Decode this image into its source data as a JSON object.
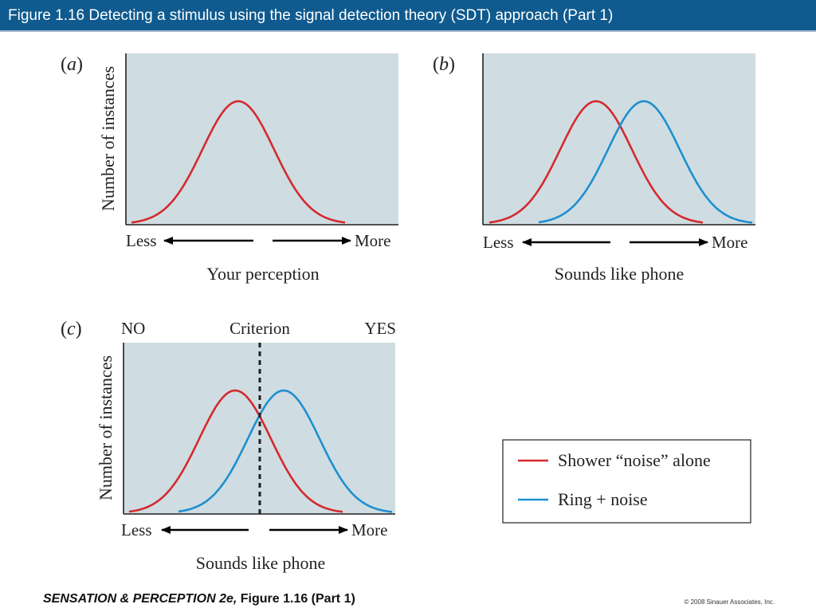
{
  "header": {
    "title": "Figure 1.16  Detecting a stimulus using the signal detection theory (SDT) approach (Part 1)"
  },
  "colors": {
    "title_bar": "#0f5a8e",
    "plot_bg": "#cfdde2",
    "noise_curve": "#d42a2e",
    "signal_curve": "#1e8fcf",
    "text": "#231f20"
  },
  "panels": {
    "a": {
      "letter": "a",
      "ylabel": "Number of instances",
      "less": "Less",
      "more": "More",
      "xlabel": "Your perception"
    },
    "b": {
      "letter": "b",
      "less": "Less",
      "more": "More",
      "xlabel": "Sounds like phone"
    },
    "c": {
      "letter": "c",
      "ylabel": "Number of instances",
      "no": "NO",
      "criterion": "Criterion",
      "yes": "YES",
      "less": "Less",
      "more": "More",
      "xlabel": "Sounds like phone"
    }
  },
  "legend": {
    "noise": "Shower “noise” alone",
    "signal": "Ring + noise"
  },
  "footer": {
    "book": "SENSATION & PERCEPTION 2e,",
    "figure": " Figure 1.16 (Part 1)",
    "copyright": "© 2008 Sinauer Associates, Inc."
  }
}
